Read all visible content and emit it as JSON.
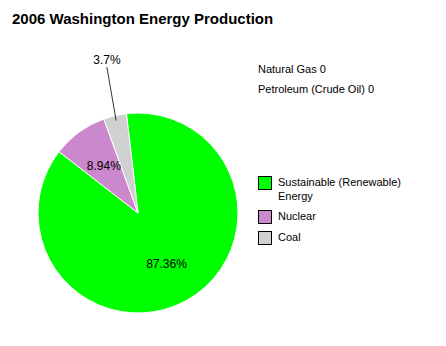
{
  "chart_data": {
    "type": "pie",
    "title": "2006 Washington Energy Production",
    "categories": [
      "Sustainable (Renewable)\nEnergy",
      "Nuclear",
      "Coal"
    ],
    "values": [
      87.36,
      8.94,
      3.7
    ],
    "value_labels": [
      "87.36%",
      "8.94%",
      "3.7%"
    ],
    "colors": [
      "#00FF00",
      "#CC88CC",
      "#D0D0D0"
    ],
    "annotations": [
      "Natural Gas 0",
      "Petroleum (Crude Oil) 0"
    ],
    "legend": "right",
    "data_labels": true
  }
}
